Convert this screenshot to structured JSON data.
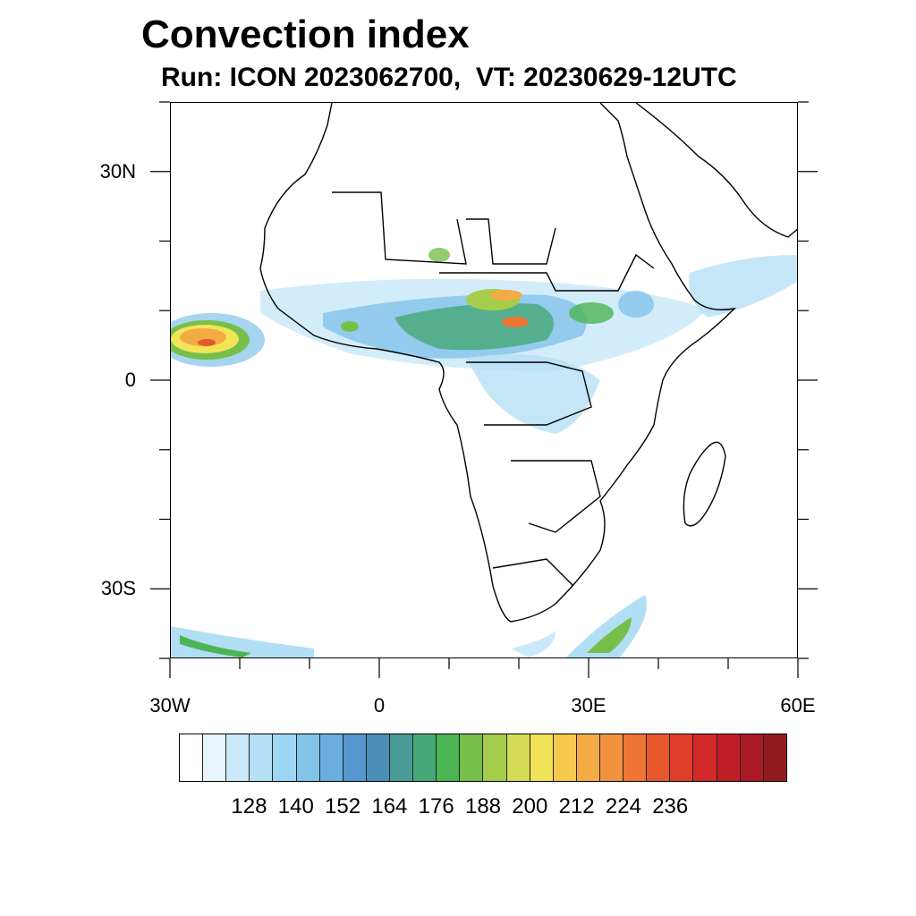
{
  "title": "Convection index",
  "subtitle": "Run: ICON 2023062700,  VT: 20230629-12UTC",
  "map": {
    "lon_range": [
      -30,
      60
    ],
    "lat_range": [
      -40,
      40
    ],
    "lat_labels": [
      {
        "lat": 30,
        "text": "30N"
      },
      {
        "lat": 0,
        "text": "0"
      },
      {
        "lat": -30,
        "text": "30S"
      }
    ],
    "lon_labels": [
      {
        "lon": -30,
        "text": "30W"
      },
      {
        "lon": 0,
        "text": "0"
      },
      {
        "lon": 30,
        "text": "30E"
      },
      {
        "lon": 60,
        "text": "60E"
      }
    ]
  },
  "colorbar": {
    "colors": [
      "#ffffff",
      "#e6f4fc",
      "#cbe9f8",
      "#b5e0f5",
      "#9dd6f3",
      "#82c3ea",
      "#6aaee0",
      "#5597cf",
      "#4b8fb8",
      "#4a9a98",
      "#46a876",
      "#4cb553",
      "#76bf4a",
      "#a6cc4c",
      "#d4dc56",
      "#f1e456",
      "#f6c84d",
      "#f4ab45",
      "#f2923e",
      "#ee7533",
      "#e8582c",
      "#df3f2a",
      "#d12a29",
      "#bf1d27",
      "#aa1a24",
      "#911b1e"
    ],
    "labels": [
      "128",
      "140",
      "152",
      "164",
      "176",
      "188",
      "200",
      "212",
      "224",
      "236"
    ]
  }
}
